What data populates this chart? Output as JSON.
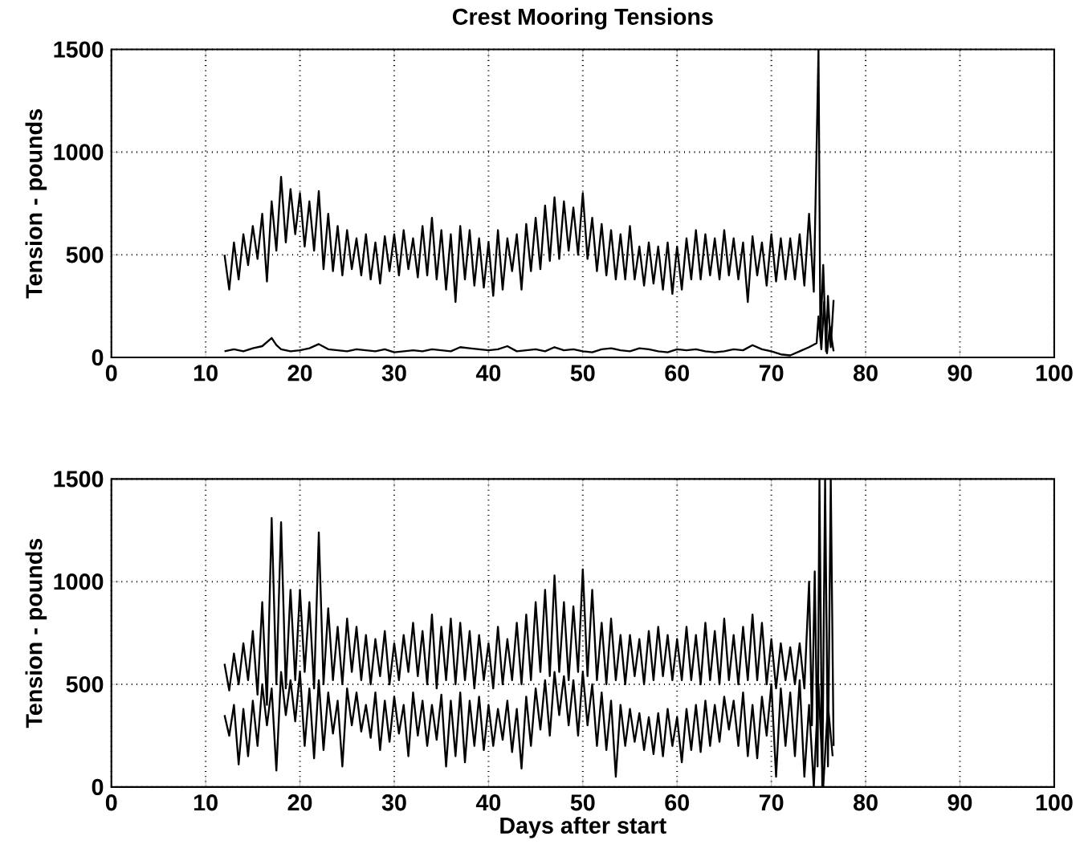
{
  "chart_data": [
    {
      "type": "line",
      "title": "Crest Mooring Tensions",
      "ylabel": "Tension - pounds",
      "xlim": [
        0,
        100
      ],
      "ylim": [
        0,
        1500
      ],
      "xticks": [
        0,
        10,
        20,
        30,
        40,
        50,
        60,
        70,
        80,
        90,
        100
      ],
      "yticks": [
        0,
        500,
        1000,
        1500
      ],
      "grid": true,
      "series": [
        {
          "color": "#000000",
          "x": [
            12,
            12.5,
            13,
            13.5,
            14,
            14.5,
            15,
            15.5,
            16,
            16.5,
            17,
            17.5,
            18,
            18.5,
            19,
            19.5,
            20,
            20.5,
            21,
            21.5,
            22,
            22.5,
            23,
            23.5,
            24,
            24.5,
            25,
            25.5,
            26,
            26.5,
            27,
            27.5,
            28,
            28.5,
            29,
            29.5,
            30,
            30.5,
            31,
            31.5,
            32,
            32.5,
            33,
            33.5,
            34,
            34.5,
            35,
            35.5,
            36,
            36.5,
            37,
            37.5,
            38,
            38.5,
            39,
            39.5,
            40,
            40.5,
            41,
            41.5,
            42,
            42.5,
            43,
            43.5,
            44,
            44.5,
            45,
            45.5,
            46,
            46.5,
            47,
            47.5,
            48,
            48.5,
            49,
            49.5,
            50,
            50.5,
            51,
            51.5,
            52,
            52.5,
            53,
            53.5,
            54,
            54.5,
            55,
            55.5,
            56,
            56.5,
            57,
            57.5,
            58,
            58.5,
            59,
            59.5,
            60,
            60.5,
            61,
            61.5,
            62,
            62.5,
            63,
            63.5,
            64,
            64.5,
            65,
            65.5,
            66,
            66.5,
            67,
            67.5,
            68,
            68.5,
            69,
            69.5,
            70,
            70.5,
            71,
            71.5,
            72,
            72.5,
            73,
            73.5,
            74,
            74.5,
            75,
            75.2,
            75.5,
            75.8,
            76,
            76.3,
            76.6
          ],
          "values": [
            500,
            330,
            560,
            380,
            600,
            450,
            640,
            480,
            700,
            370,
            760,
            520,
            880,
            560,
            820,
            600,
            800,
            540,
            760,
            520,
            810,
            430,
            700,
            420,
            640,
            400,
            620,
            430,
            580,
            400,
            600,
            380,
            560,
            360,
            590,
            420,
            600,
            400,
            620,
            430,
            580,
            390,
            640,
            400,
            680,
            380,
            620,
            330,
            600,
            270,
            640,
            380,
            620,
            350,
            580,
            340,
            560,
            300,
            620,
            330,
            580,
            420,
            600,
            330,
            650,
            420,
            680,
            430,
            740,
            470,
            780,
            480,
            760,
            520,
            730,
            500,
            800,
            480,
            680,
            420,
            650,
            400,
            620,
            380,
            600,
            380,
            640,
            380,
            540,
            350,
            560,
            360,
            540,
            330,
            560,
            310,
            540,
            330,
            580,
            380,
            620,
            380,
            600,
            400,
            580,
            380,
            620,
            400,
            580,
            380,
            560,
            270,
            590,
            400,
            560,
            350,
            600,
            370,
            580,
            380,
            580,
            380,
            600,
            350,
            700,
            320,
            1500,
            100,
            450,
            30,
            300,
            50,
            280
          ]
        },
        {
          "color": "#000000",
          "x": [
            12,
            13,
            14,
            15,
            16,
            17,
            17.5,
            18,
            19,
            20,
            21,
            22,
            23,
            24,
            25,
            26,
            27,
            28,
            29,
            30,
            31,
            32,
            33,
            34,
            35,
            36,
            37,
            38,
            39,
            40,
            41,
            42,
            43,
            44,
            45,
            46,
            47,
            48,
            49,
            50,
            51,
            52,
            53,
            54,
            55,
            56,
            57,
            58,
            59,
            60,
            61,
            62,
            63,
            64,
            65,
            66,
            67,
            68,
            69,
            70,
            71,
            72,
            73,
            74,
            74.8,
            75,
            75.3,
            75.6,
            75.9,
            76.2,
            76.6
          ],
          "values": [
            30,
            40,
            30,
            45,
            55,
            95,
            60,
            40,
            30,
            35,
            45,
            65,
            40,
            35,
            30,
            40,
            35,
            30,
            40,
            25,
            30,
            35,
            30,
            40,
            35,
            30,
            50,
            45,
            40,
            35,
            40,
            55,
            30,
            35,
            40,
            30,
            50,
            35,
            40,
            30,
            25,
            40,
            45,
            35,
            30,
            45,
            40,
            30,
            25,
            40,
            35,
            40,
            30,
            25,
            30,
            40,
            35,
            60,
            40,
            30,
            15,
            10,
            30,
            50,
            70,
            200,
            40,
            270,
            20,
            150,
            30
          ]
        }
      ]
    },
    {
      "type": "line",
      "xlabel": "Days after start",
      "ylabel": "Tension - pounds",
      "xlim": [
        0,
        100
      ],
      "ylim": [
        0,
        1500
      ],
      "xticks": [
        0,
        10,
        20,
        30,
        40,
        50,
        60,
        70,
        80,
        90,
        100
      ],
      "yticks": [
        0,
        500,
        1000,
        1500
      ],
      "grid": true,
      "series": [
        {
          "color": "#000000",
          "x": [
            12,
            12.5,
            13,
            13.5,
            14,
            14.5,
            15,
            15.5,
            16,
            16.5,
            17,
            17.5,
            18,
            18.5,
            19,
            19.5,
            20,
            20.5,
            21,
            21.5,
            22,
            22.5,
            23,
            23.5,
            24,
            24.5,
            25,
            25.5,
            26,
            26.5,
            27,
            27.5,
            28,
            28.5,
            29,
            29.5,
            30,
            30.5,
            31,
            31.5,
            32,
            32.5,
            33,
            33.5,
            34,
            34.5,
            35,
            35.5,
            36,
            36.5,
            37,
            37.5,
            38,
            38.5,
            39,
            39.5,
            40,
            40.5,
            41,
            41.5,
            42,
            42.5,
            43,
            43.5,
            44,
            44.5,
            45,
            45.5,
            46,
            46.5,
            47,
            47.5,
            48,
            48.5,
            49,
            49.5,
            50,
            50.5,
            51,
            51.5,
            52,
            52.5,
            53,
            53.5,
            54,
            54.5,
            55,
            55.5,
            56,
            56.5,
            57,
            57.5,
            58,
            58.5,
            59,
            59.5,
            60,
            60.5,
            61,
            61.5,
            62,
            62.5,
            63,
            63.5,
            64,
            64.5,
            65,
            65.5,
            66,
            66.5,
            67,
            67.5,
            68,
            68.5,
            69,
            69.5,
            70,
            70.5,
            71,
            71.5,
            72,
            72.5,
            73,
            73.5,
            74,
            74.3,
            74.6,
            74.9,
            75.1,
            75.4,
            75.7,
            76,
            76.3,
            76.6
          ],
          "values": [
            600,
            470,
            650,
            500,
            700,
            520,
            760,
            450,
            900,
            400,
            1310,
            500,
            1290,
            480,
            960,
            520,
            960,
            560,
            900,
            480,
            1240,
            500,
            870,
            520,
            780,
            500,
            820,
            560,
            780,
            520,
            740,
            500,
            720,
            540,
            760,
            500,
            700,
            520,
            740,
            560,
            800,
            540,
            760,
            500,
            840,
            480,
            780,
            520,
            820,
            500,
            800,
            520,
            760,
            480,
            740,
            520,
            700,
            480,
            780,
            500,
            720,
            520,
            800,
            500,
            840,
            520,
            900,
            560,
            960,
            540,
            1030,
            560,
            900,
            520,
            880,
            560,
            1060,
            540,
            960,
            520,
            800,
            500,
            820,
            520,
            740,
            500,
            740,
            540,
            720,
            500,
            760,
            520,
            780,
            540,
            740,
            520,
            720,
            520,
            780,
            520,
            740,
            500,
            800,
            520,
            760,
            500,
            820,
            520,
            740,
            500,
            780,
            520,
            840,
            520,
            800,
            500,
            720,
            480,
            700,
            520,
            680,
            500,
            700,
            480,
            1000,
            300,
            1050,
            100,
            1500,
            0,
            1500,
            100,
            1500,
            200
          ]
        },
        {
          "color": "#000000",
          "x": [
            12,
            12.5,
            13,
            13.5,
            14,
            14.5,
            15,
            15.5,
            16,
            16.5,
            17,
            17.5,
            18,
            18.5,
            19,
            19.5,
            20,
            20.5,
            21,
            21.5,
            22,
            22.5,
            23,
            23.5,
            24,
            24.5,
            25,
            25.5,
            26,
            26.5,
            27,
            27.5,
            28,
            28.5,
            29,
            29.5,
            30,
            30.5,
            31,
            31.5,
            32,
            32.5,
            33,
            33.5,
            34,
            34.5,
            35,
            35.5,
            36,
            36.5,
            37,
            37.5,
            38,
            38.5,
            39,
            39.5,
            40,
            40.5,
            41,
            41.5,
            42,
            42.5,
            43,
            43.5,
            44,
            44.5,
            45,
            45.5,
            46,
            46.5,
            47,
            47.5,
            48,
            48.5,
            49,
            49.5,
            50,
            50.5,
            51,
            51.5,
            52,
            52.5,
            53,
            53.5,
            54,
            54.5,
            55,
            55.5,
            56,
            56.5,
            57,
            57.5,
            58,
            58.5,
            59,
            59.5,
            60,
            60.5,
            61,
            61.5,
            62,
            62.5,
            63,
            63.5,
            64,
            64.5,
            65,
            65.5,
            66,
            66.5,
            67,
            67.5,
            68,
            68.5,
            69,
            69.5,
            70,
            70.5,
            71,
            71.5,
            72,
            72.5,
            73,
            73.5,
            74,
            74.5,
            75,
            75.5,
            76,
            76.5
          ],
          "values": [
            350,
            250,
            400,
            110,
            380,
            150,
            420,
            200,
            500,
            300,
            480,
            80,
            560,
            350,
            520,
            320,
            560,
            200,
            480,
            140,
            520,
            180,
            460,
            260,
            420,
            100,
            480,
            300,
            460,
            270,
            400,
            240,
            460,
            180,
            420,
            220,
            440,
            260,
            400,
            150,
            460,
            250,
            420,
            200,
            400,
            230,
            450,
            100,
            420,
            150,
            460,
            120,
            420,
            200,
            440,
            180,
            400,
            200,
            380,
            230,
            420,
            170,
            380,
            90,
            440,
            200,
            480,
            280,
            520,
            250,
            560,
            350,
            540,
            300,
            520,
            250,
            560,
            300,
            500,
            200,
            460,
            180,
            420,
            50,
            400,
            200,
            380,
            220,
            360,
            180,
            340,
            160,
            360,
            150,
            380,
            200,
            340,
            120,
            380,
            180,
            400,
            170,
            420,
            200,
            400,
            220,
            440,
            280,
            420,
            200,
            460,
            150,
            400,
            140,
            440,
            250,
            500,
            50,
            480,
            200,
            460,
            150,
            520,
            50,
            400,
            0,
            500,
            0,
            400,
            150
          ]
        }
      ]
    }
  ]
}
